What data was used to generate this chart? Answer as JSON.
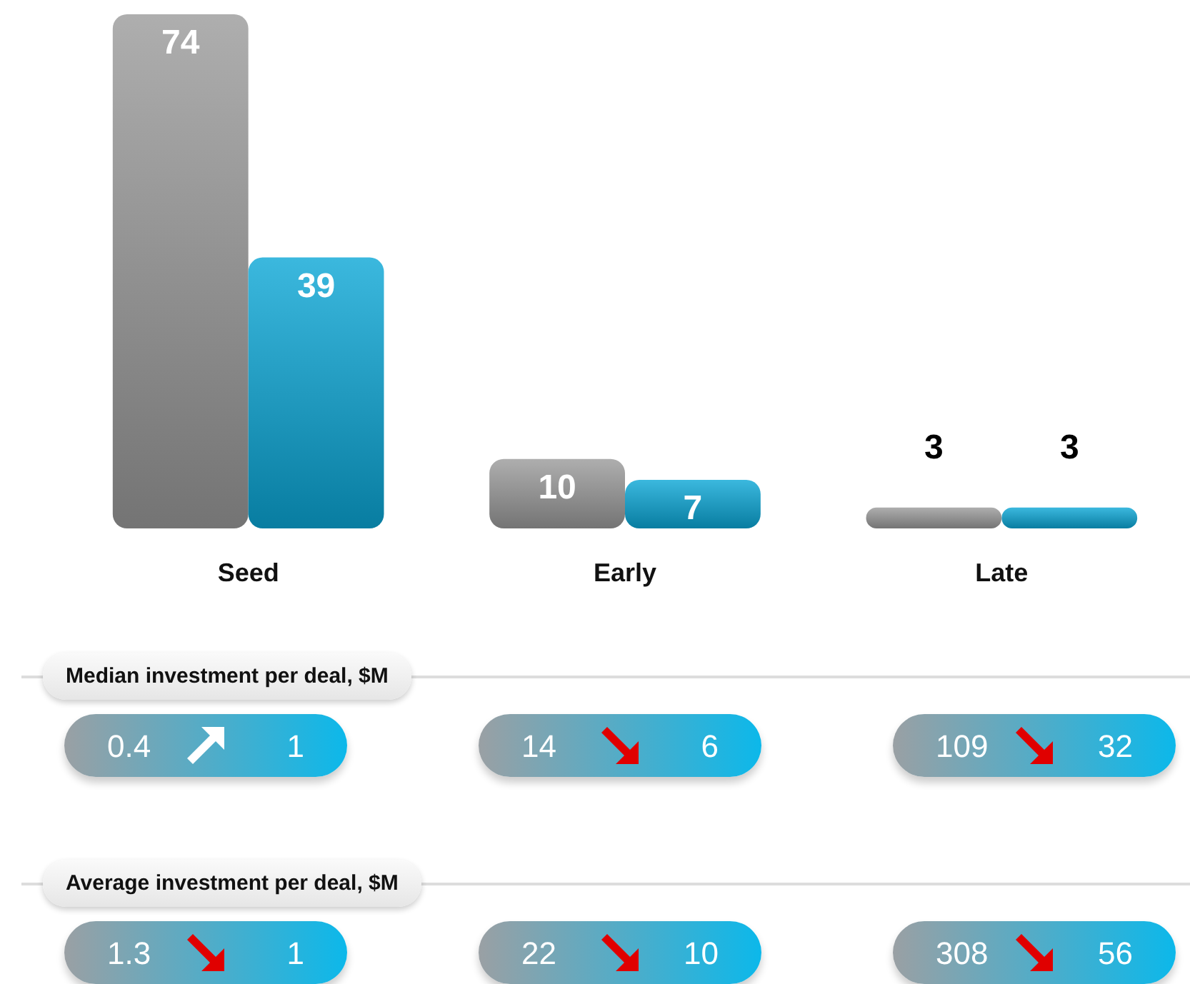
{
  "chart_data": [
    {
      "type": "bar",
      "categories": [
        "Seed",
        "Early",
        "Late"
      ],
      "series": [
        {
          "color": "#9a9a9a",
          "values": [
            74,
            10,
            3
          ]
        },
        {
          "color": "#0aa6d6",
          "values": [
            39,
            7,
            3
          ]
        }
      ],
      "data_labels": true
    },
    {
      "type": "other",
      "title": "Median investment per deal, $M",
      "annotations": [
        "0.4",
        "1",
        "14",
        "6",
        "109",
        "32"
      ]
    },
    {
      "type": "other",
      "title": "Average investment per deal, $M",
      "annotations": [
        "1.3",
        "1",
        "22",
        "10",
        "308",
        "56"
      ]
    }
  ]
}
